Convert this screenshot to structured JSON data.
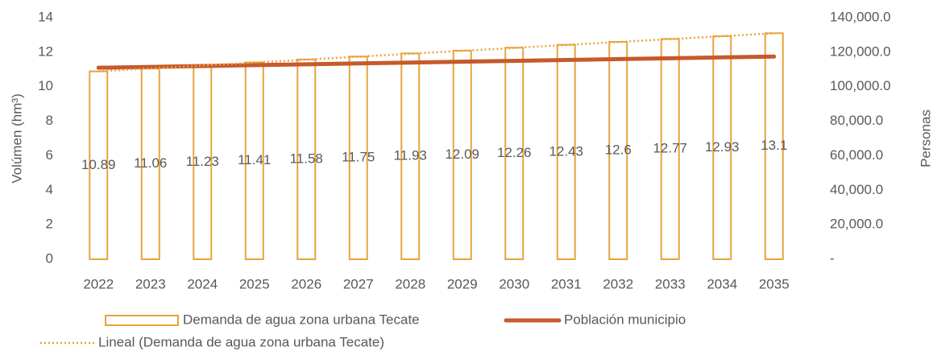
{
  "chart_data": {
    "type": "bar",
    "y_label": "Volúmen (hm³)",
    "y2_label": "Personas",
    "categories": [
      "2022",
      "2023",
      "2024",
      "2025",
      "2026",
      "2027",
      "2028",
      "2029",
      "2030",
      "2031",
      "2032",
      "2033",
      "2034",
      "2035"
    ],
    "series": [
      {
        "name": "Demanda de agua zona urbana Tecate",
        "type": "bar",
        "color": "#e8a33d",
        "values": [
          10.89,
          11.06,
          11.23,
          11.41,
          11.58,
          11.75,
          11.93,
          12.09,
          12.26,
          12.43,
          12.6,
          12.77,
          12.93,
          13.1
        ]
      },
      {
        "name": "Población municipio",
        "type": "line",
        "color": "#c55a2b",
        "axis": "y2",
        "values": [
          111000,
          111500,
          112000,
          112500,
          113000,
          113500,
          114000,
          114500,
          115000,
          115500,
          116000,
          116500,
          117000,
          117500
        ]
      },
      {
        "name": "Lineal (Demanda de agua zona urbana Tecate)",
        "type": "trend",
        "color": "#e8a33d",
        "values": [
          10.89,
          11.06,
          11.23,
          11.4,
          11.57,
          11.74,
          11.91,
          12.08,
          12.25,
          12.42,
          12.59,
          12.76,
          12.93,
          13.1
        ]
      }
    ],
    "ylim": [
      0,
      14
    ],
    "yticks": [
      0,
      2,
      4,
      6,
      8,
      10,
      12,
      14
    ],
    "y2lim": [
      0,
      140000
    ],
    "y2ticks": [
      {
        "value": 0,
        "label": "-"
      },
      {
        "value": 20000,
        "label": "20,000.0"
      },
      {
        "value": 40000,
        "label": "40,000.0"
      },
      {
        "value": 60000,
        "label": "60,000.0"
      },
      {
        "value": 80000,
        "label": "80,000.0"
      },
      {
        "value": 100000,
        "label": "100,000.0"
      },
      {
        "value": 120000,
        "label": "120,000.0"
      },
      {
        "value": 140000,
        "label": "140,000.0"
      }
    ],
    "grid": false
  }
}
